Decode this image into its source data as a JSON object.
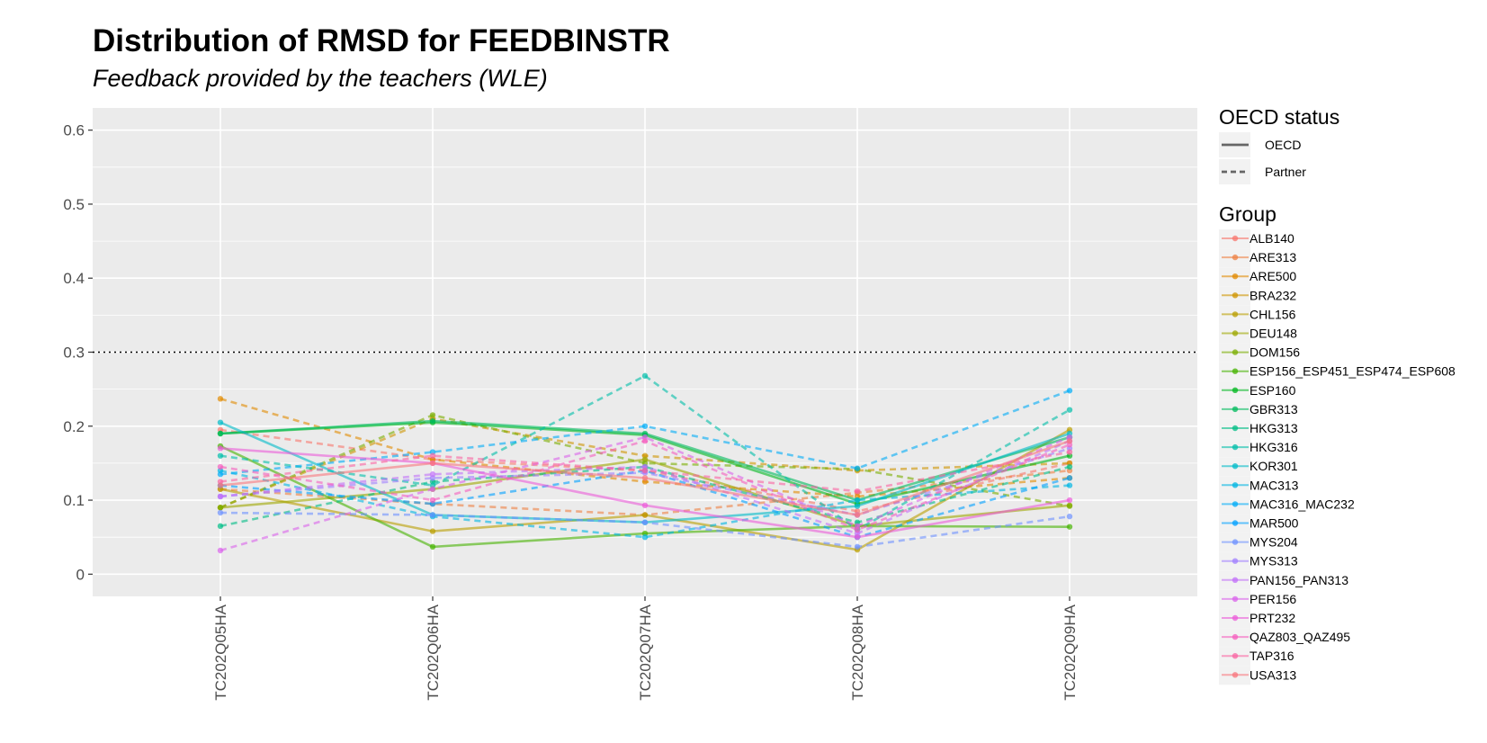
{
  "chart_data": {
    "type": "line",
    "title": "Distribution of RMSD for FEEDBINSTR",
    "subtitle": "Feedback provided by the teachers (WLE)",
    "xlabel": "",
    "ylabel": "",
    "categories": [
      "TC202Q05HA",
      "TC202Q06HA",
      "TC202Q07HA",
      "TC202Q08HA",
      "TC202Q09HA"
    ],
    "ylim": [
      -0.03,
      0.63
    ],
    "yticks": [
      "0",
      "0.1",
      "0.2",
      "0.3",
      "0.4",
      "0.5",
      "0.6"
    ],
    "ytick_values": [
      0,
      0.1,
      0.2,
      0.3,
      0.4,
      0.5,
      0.6
    ],
    "reference_line": 0.3,
    "grid": true,
    "legend_position": "right",
    "linetype_legend": {
      "title": "OECD status",
      "items": [
        {
          "label": "OECD",
          "dash": "solid"
        },
        {
          "label": "Partner",
          "dash": "dashed"
        }
      ]
    },
    "group_legend_title": "Group",
    "series": [
      {
        "name": "ALB140",
        "color": "#F8766D",
        "status": "Partner",
        "values": [
          0.195,
          0.155,
          0.14,
          0.085,
          0.15
        ]
      },
      {
        "name": "ARE313",
        "color": "#EE8043",
        "status": "Partner",
        "values": [
          0.115,
          0.095,
          0.08,
          0.11,
          0.14
        ]
      },
      {
        "name": "ARE500",
        "color": "#E18A00",
        "status": "Partner",
        "values": [
          0.237,
          0.155,
          0.125,
          0.105,
          0.13
        ]
      },
      {
        "name": "BRA232",
        "color": "#CF9400",
        "status": "Partner",
        "values": [
          0.09,
          0.21,
          0.16,
          0.14,
          0.15
        ]
      },
      {
        "name": "CHL156",
        "color": "#B99E00",
        "status": "OECD",
        "values": [
          0.115,
          0.058,
          0.08,
          0.033,
          0.195
        ]
      },
      {
        "name": "DEU148",
        "color": "#9EA700",
        "status": "OECD",
        "values": [
          0.09,
          0.115,
          0.155,
          0.065,
          0.093
        ]
      },
      {
        "name": "DOM156",
        "color": "#7AAE00",
        "status": "Partner",
        "values": [
          0.09,
          0.215,
          0.15,
          0.142,
          0.092
        ]
      },
      {
        "name": "ESP156_ESP451_ESP474_ESP608",
        "color": "#46B300",
        "status": "OECD",
        "values": [
          0.173,
          0.037,
          0.055,
          0.065,
          0.064
        ]
      },
      {
        "name": "ESP160",
        "color": "#00B81F",
        "status": "OECD",
        "values": [
          0.19,
          0.205,
          0.188,
          0.095,
          0.16
        ]
      },
      {
        "name": "GBR313",
        "color": "#00BB5E",
        "status": "OECD",
        "values": [
          0.19,
          0.207,
          0.19,
          0.1,
          0.185
        ]
      },
      {
        "name": "HKG313",
        "color": "#00BD86",
        "status": "Partner",
        "values": [
          0.065,
          0.125,
          0.145,
          0.07,
          0.145
        ]
      },
      {
        "name": "HKG316",
        "color": "#00BEA9",
        "status": "Partner",
        "values": [
          0.16,
          0.12,
          0.268,
          0.06,
          0.222
        ]
      },
      {
        "name": "KOR301",
        "color": "#00BBC8",
        "status": "OECD",
        "values": [
          0.205,
          0.08,
          0.07,
          0.092,
          0.19
        ]
      },
      {
        "name": "MAC313",
        "color": "#00B5E2",
        "status": "Partner",
        "values": [
          0.14,
          0.078,
          0.05,
          0.1,
          0.12
        ]
      },
      {
        "name": "MAC316_MAC232",
        "color": "#00ACF7",
        "status": "Partner",
        "values": [
          0.135,
          0.165,
          0.2,
          0.143,
          0.248
        ]
      },
      {
        "name": "MAR500",
        "color": "#00A0FF",
        "status": "Partner",
        "values": [
          0.12,
          0.095,
          0.14,
          0.05,
          0.13
        ]
      },
      {
        "name": "MYS204",
        "color": "#6E91FF",
        "status": "Partner",
        "values": [
          0.083,
          0.08,
          0.07,
          0.037,
          0.078
        ]
      },
      {
        "name": "MYS313",
        "color": "#A07FFF",
        "status": "Partner",
        "values": [
          0.105,
          0.13,
          0.137,
          0.08,
          0.17
        ]
      },
      {
        "name": "PAN156_PAN313",
        "color": "#C26FF9",
        "status": "Partner",
        "values": [
          0.105,
          0.135,
          0.145,
          0.055,
          0.18
        ]
      },
      {
        "name": "PER156",
        "color": "#DA62EB",
        "status": "Partner",
        "values": [
          0.032,
          0.115,
          0.185,
          0.065,
          0.185
        ]
      },
      {
        "name": "PRT232",
        "color": "#EB5BD8",
        "status": "OECD",
        "values": [
          0.17,
          0.15,
          0.093,
          0.05,
          0.1
        ]
      },
      {
        "name": "QAZ803_QAZ495",
        "color": "#F55DBE",
        "status": "Partner",
        "values": [
          0.145,
          0.1,
          0.18,
          0.06,
          0.175
        ]
      },
      {
        "name": "TAP316",
        "color": "#FA64A2",
        "status": "Partner",
        "values": [
          0.125,
          0.16,
          0.14,
          0.112,
          0.165
        ]
      },
      {
        "name": "USA313",
        "color": "#F8767D",
        "status": "OECD",
        "values": [
          0.12,
          0.15,
          0.13,
          0.08,
          0.18
        ]
      }
    ]
  }
}
